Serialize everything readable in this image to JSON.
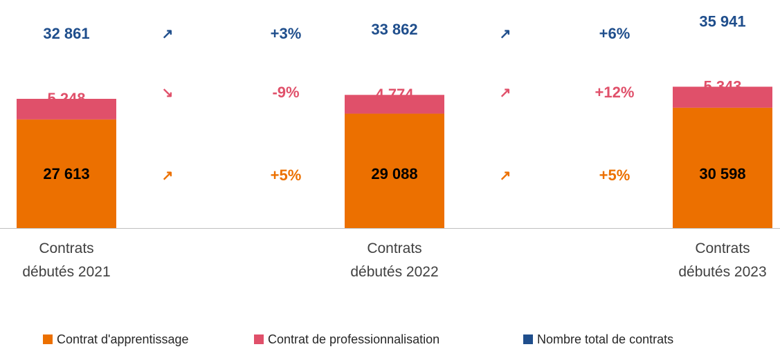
{
  "chart_data": {
    "type": "bar",
    "stacked": true,
    "categories": [
      "Contrats débutés 2021",
      "Contrats débutés 2022",
      "Contrats débutés 2023"
    ],
    "series": [
      {
        "name": "Contrat d'apprentissage",
        "color": "#ec7000",
        "label_color": "#000000",
        "values": [
          27613,
          29088,
          30598
        ],
        "value_labels": [
          "27 613",
          "29 088",
          "30 598"
        ],
        "changes": [
          {
            "arrow": "↗",
            "label": "+5%"
          },
          {
            "arrow": "↗",
            "label": "+5%"
          }
        ],
        "change_color": "#ec7000"
      },
      {
        "name": "Contrat de professionnalisation",
        "color": "#e0506a",
        "label_color": "#e0506a",
        "values": [
          5248,
          4774,
          5343
        ],
        "value_labels": [
          "5 248",
          "4 774",
          "5 343"
        ],
        "changes": [
          {
            "arrow": "↘",
            "label": "-9%"
          },
          {
            "arrow": "↗",
            "label": "+12%"
          }
        ],
        "change_color": "#e0506a"
      },
      {
        "name": "Nombre total de contrats",
        "color": "#1f4e8c",
        "label_color": "#1f4e8c",
        "total": true,
        "values": [
          32861,
          33862,
          35941
        ],
        "value_labels": [
          "32 861",
          "33 862",
          "35 941"
        ],
        "changes": [
          {
            "arrow": "↗",
            "label": "+3%"
          },
          {
            "arrow": "↗",
            "label": "+6%"
          }
        ],
        "change_color": "#1f4e8c"
      }
    ]
  }
}
